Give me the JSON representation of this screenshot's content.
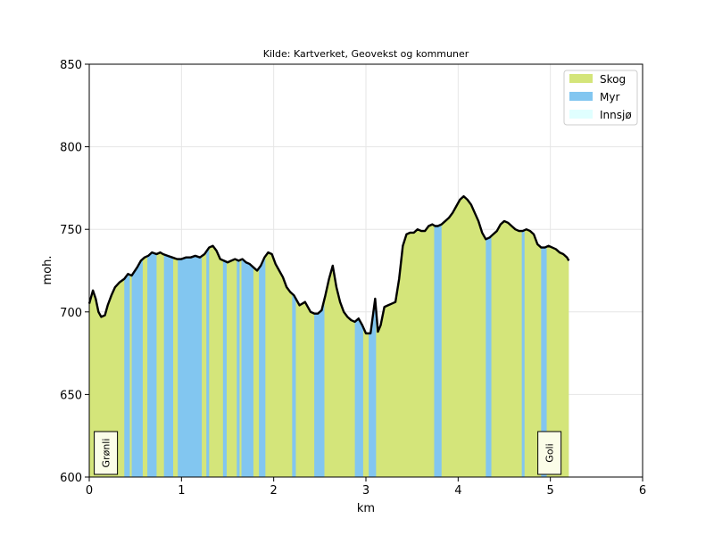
{
  "chart_data": {
    "type": "area",
    "title": "Kilde: Kartverket, Geovekst og kommuner",
    "xlabel": "km",
    "ylabel": "moh.",
    "xlim": [
      0,
      6
    ],
    "ylim": [
      600,
      850
    ],
    "xticks": [
      "0",
      "1",
      "2",
      "3",
      "4",
      "5",
      "6"
    ],
    "yticks": [
      "600",
      "650",
      "700",
      "750",
      "800",
      "850"
    ],
    "grid": true,
    "legend_position": "top-right",
    "legend": [
      {
        "name": "Skog",
        "color": "#d4e57a"
      },
      {
        "name": "Myr",
        "color": "#82c6f0"
      },
      {
        "name": "Innsjø",
        "color": "#e0ffff"
      }
    ],
    "places": [
      {
        "name": "Grønli",
        "x": 0.18
      },
      {
        "name": "Goli",
        "x": 4.99
      }
    ],
    "elevation": {
      "x": [
        0,
        0.04,
        0.07,
        0.1,
        0.13,
        0.17,
        0.2,
        0.24,
        0.28,
        0.33,
        0.38,
        0.42,
        0.46,
        0.52,
        0.56,
        0.6,
        0.64,
        0.68,
        0.73,
        0.77,
        0.8,
        0.85,
        0.9,
        0.95,
        1.0,
        1.05,
        1.1,
        1.15,
        1.2,
        1.25,
        1.3,
        1.34,
        1.38,
        1.42,
        1.46,
        1.5,
        1.54,
        1.58,
        1.62,
        1.66,
        1.7,
        1.74,
        1.78,
        1.82,
        1.86,
        1.9,
        1.94,
        1.98,
        2.02,
        2.06,
        2.1,
        2.14,
        2.18,
        2.22,
        2.28,
        2.34,
        2.4,
        2.44,
        2.48,
        2.52,
        2.56,
        2.6,
        2.64,
        2.68,
        2.72,
        2.76,
        2.8,
        2.84,
        2.88,
        2.92,
        2.96,
        3.0,
        3.05,
        3.1,
        3.13,
        3.16,
        3.2,
        3.24,
        3.28,
        3.32,
        3.36,
        3.4,
        3.44,
        3.48,
        3.52,
        3.56,
        3.6,
        3.64,
        3.68,
        3.72,
        3.75,
        3.78,
        3.82,
        3.86,
        3.9,
        3.94,
        3.98,
        4.02,
        4.06,
        4.1,
        4.14,
        4.18,
        4.22,
        4.26,
        4.3,
        4.34,
        4.38,
        4.42,
        4.46,
        4.5,
        4.54,
        4.58,
        4.62,
        4.66,
        4.7,
        4.74,
        4.78,
        4.82,
        4.86,
        4.9,
        4.94,
        4.98,
        5.02,
        5.06,
        5.1,
        5.14,
        5.18,
        5.2
      ],
      "y": [
        705,
        713,
        708,
        700,
        697,
        698,
        704,
        710,
        715,
        718,
        720,
        723,
        722,
        727,
        731,
        733,
        734,
        736,
        735,
        736,
        735,
        734,
        733,
        732,
        732,
        733,
        733,
        734,
        733,
        735,
        739,
        740,
        737,
        732,
        731,
        730,
        731,
        732,
        731,
        732,
        730,
        729,
        727,
        725,
        728,
        733,
        736,
        735,
        729,
        725,
        721,
        715,
        712,
        710,
        704,
        706,
        700,
        699,
        699,
        701,
        710,
        720,
        728,
        715,
        706,
        700,
        697,
        695,
        694,
        696,
        692,
        687,
        687,
        708,
        688,
        692,
        703,
        704,
        705,
        706,
        720,
        740,
        747,
        748,
        748,
        750,
        749,
        749,
        752,
        753,
        752,
        752,
        753,
        755,
        757,
        760,
        764,
        768,
        770,
        768,
        765,
        760,
        755,
        748,
        744,
        745,
        747,
        749,
        753,
        755,
        754,
        752,
        750,
        749,
        749,
        750,
        749,
        747,
        741,
        739,
        739,
        740,
        739,
        738,
        736,
        735,
        733,
        731
      ]
    },
    "myr_segments": [
      [
        0.38,
        0.44
      ],
      [
        0.46,
        0.58
      ],
      [
        0.63,
        0.73
      ],
      [
        0.81,
        0.91
      ],
      [
        0.96,
        1.22
      ],
      [
        1.27,
        1.3
      ],
      [
        1.45,
        1.49
      ],
      [
        1.6,
        1.63
      ],
      [
        1.65,
        1.78
      ],
      [
        1.84,
        1.91
      ],
      [
        2.2,
        2.24
      ],
      [
        2.44,
        2.55
      ],
      [
        2.88,
        2.97
      ],
      [
        3.03,
        3.11
      ],
      [
        3.74,
        3.82
      ],
      [
        4.3,
        4.36
      ],
      [
        4.69,
        4.72
      ],
      [
        4.9,
        4.96
      ]
    ]
  }
}
